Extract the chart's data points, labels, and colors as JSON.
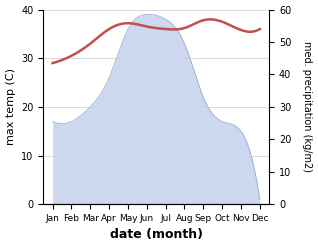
{
  "months": [
    "Jan",
    "Feb",
    "Mar",
    "Apr",
    "May",
    "Jun",
    "Jul",
    "Aug",
    "Sep",
    "Oct",
    "Nov",
    "Dec"
  ],
  "x": [
    1,
    2,
    3,
    4,
    5,
    6,
    7,
    8,
    9,
    10,
    11,
    12
  ],
  "temp": [
    29.0,
    30.5,
    33.0,
    36.0,
    37.2,
    36.5,
    36.0,
    36.2,
    37.8,
    37.5,
    35.8,
    36.0
  ],
  "precip_left": [
    17,
    17,
    20,
    26,
    36,
    39,
    38,
    33,
    22,
    17,
    15,
    1
  ],
  "temp_color": "#c0504d",
  "precip_fill_color": "#c5d0ea",
  "precip_line_color": "#9aadd0",
  "ylim_left": [
    0,
    40
  ],
  "ylim_right": [
    0,
    60
  ],
  "yticks_left": [
    0,
    10,
    20,
    30,
    40
  ],
  "yticks_right": [
    0,
    10,
    20,
    30,
    40,
    50,
    60
  ],
  "xlabel": "date (month)",
  "ylabel_left": "max temp (C)",
  "ylabel_right": "med. precipitation (kg/m2)",
  "background_color": "#ffffff",
  "grid_color": "#cccccc",
  "temp_linewidth": 1.8,
  "figsize": [
    3.18,
    2.47
  ],
  "dpi": 100
}
